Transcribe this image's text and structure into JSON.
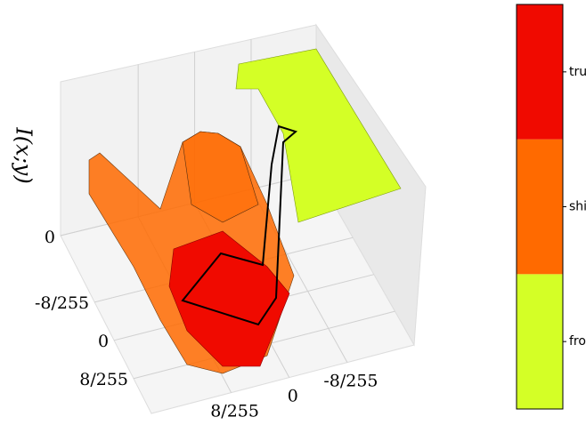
{
  "chart_data": {
    "type": "surface3d",
    "zlabel": "I(x;y)",
    "xlim": [
      0.0745,
      -0.0675
    ],
    "xticks": [
      {
        "value": 0.031372549,
        "label": "8/255"
      },
      0,
      {
        "value": -0.031372549,
        "label": "-8/255"
      }
    ],
    "ylim": [
      -0.086,
      0.06
    ],
    "yticks": [
      {
        "value": -0.031372549,
        "label": "-8/255"
      },
      0,
      {
        "value": 0.031372549,
        "label": "8/255"
      }
    ],
    "zlim": [
      0,
      1
    ],
    "zticks": [
      0
    ],
    "grid": true,
    "colorbar": {
      "categories": [
        "frog",
        "ship",
        "truck"
      ],
      "colors": [
        "#d4ff26",
        "#ff6a00",
        "#f00a00"
      ]
    }
  }
}
